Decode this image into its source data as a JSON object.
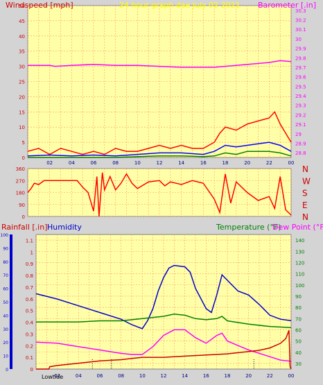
{
  "colors": {
    "plot_bg": "#ffffa8",
    "frame_bg": "#d4d4d4",
    "grid": "#ff9966",
    "wind_avg": "#0000ff",
    "wind_gust": "#ff0000",
    "wind_low": "#008000",
    "barometer": "#ff00ff",
    "direction": "#ff0000",
    "rain": "#cc0000",
    "humidity": "#0000cc",
    "temperature": "#008000",
    "dewpoint": "#ff00ff",
    "axis_label_magenta": "#ff00ff",
    "title_yellow": "#ffff00"
  },
  "chart_data": [
    {
      "type": "line",
      "title": "24 hour graph dae   July 02 2021",
      "left_axis_label": "Windspeed [mph]",
      "right_axis_label": "Barometer [.in]",
      "x_ticks": [
        "02",
        "04",
        "06",
        "08",
        "10",
        "12",
        "14",
        "16",
        "18",
        "20",
        "22",
        "00"
      ],
      "y_left_ticks": [
        0,
        5,
        10,
        15,
        20,
        25,
        30,
        35,
        40,
        45,
        50
      ],
      "y_left_range": [
        0,
        50
      ],
      "y_right_ticks": [
        "28.8",
        "28.9",
        "29",
        "29.1",
        "29.2",
        "29.3",
        "29.4",
        "29.5",
        "29.6",
        "29.7",
        "29.8",
        "29.9",
        "30",
        "30.1",
        "30.2",
        "30.3"
      ],
      "y_right_range": [
        28.75,
        30.35
      ],
      "x_range_hours": [
        0,
        24
      ],
      "series": [
        {
          "name": "",
          "axis": "right",
          "color": "barometer",
          "points": [
            [
              0,
              29.72
            ],
            [
              2,
              29.72
            ],
            [
              2.5,
              29.71
            ],
            [
              4,
              29.72
            ],
            [
              6,
              29.73
            ],
            [
              8,
              29.72
            ],
            [
              10,
              29.72
            ],
            [
              12,
              29.71
            ],
            [
              14,
              29.7
            ],
            [
              16,
              29.7
            ],
            [
              17,
              29.7
            ],
            [
              18,
              29.71
            ],
            [
              20,
              29.73
            ],
            [
              22,
              29.75
            ],
            [
              23,
              29.77
            ],
            [
              24,
              29.76
            ]
          ]
        },
        {
          "name": "",
          "axis": "left",
          "color": "wind_gust",
          "points": [
            [
              0,
              2
            ],
            [
              1,
              3
            ],
            [
              2,
              1
            ],
            [
              3,
              3
            ],
            [
              4,
              2
            ],
            [
              5,
              1
            ],
            [
              6,
              2
            ],
            [
              7,
              1
            ],
            [
              8,
              3
            ],
            [
              9,
              2
            ],
            [
              10,
              2
            ],
            [
              11,
              3
            ],
            [
              12,
              4
            ],
            [
              13,
              3
            ],
            [
              14,
              4
            ],
            [
              15,
              3
            ],
            [
              16,
              3
            ],
            [
              17,
              5
            ],
            [
              17.5,
              8
            ],
            [
              18,
              10
            ],
            [
              19,
              9
            ],
            [
              20,
              11
            ],
            [
              21,
              12
            ],
            [
              22,
              13
            ],
            [
              22.5,
              15
            ],
            [
              23,
              11
            ],
            [
              24,
              5
            ]
          ]
        },
        {
          "name": "",
          "axis": "left",
          "color": "wind_avg",
          "points": [
            [
              0,
              0.5
            ],
            [
              2,
              0.8
            ],
            [
              4,
              0.5
            ],
            [
              6,
              0.8
            ],
            [
              8,
              0.5
            ],
            [
              10,
              1
            ],
            [
              12,
              1.5
            ],
            [
              14,
              1.5
            ],
            [
              16,
              1
            ],
            [
              17,
              2
            ],
            [
              18,
              4
            ],
            [
              19,
              3.5
            ],
            [
              20,
              4
            ],
            [
              21,
              4.5
            ],
            [
              22,
              5
            ],
            [
              23,
              4
            ],
            [
              24,
              2
            ]
          ]
        },
        {
          "name": "",
          "axis": "left",
          "color": "wind_low",
          "points": [
            [
              0,
              0
            ],
            [
              8,
              0
            ],
            [
              10,
              0.3
            ],
            [
              12,
              0.5
            ],
            [
              14,
              0.5
            ],
            [
              16,
              0.3
            ],
            [
              17,
              0.5
            ],
            [
              18,
              1.5
            ],
            [
              19,
              1
            ],
            [
              20,
              2
            ],
            [
              21,
              2
            ],
            [
              22,
              2
            ],
            [
              23,
              1.5
            ],
            [
              24,
              0.5
            ]
          ]
        }
      ]
    },
    {
      "type": "line",
      "title": "",
      "y_left_ticks": [
        0,
        90,
        180,
        270,
        360
      ],
      "y_left_range": [
        0,
        360
      ],
      "y_right_labels": [
        "N",
        "W",
        "S",
        "E",
        "N"
      ],
      "x_range_hours": [
        0,
        24
      ],
      "series": [
        {
          "name": "",
          "axis": "left",
          "color": "direction",
          "points": [
            [
              0,
              180
            ],
            [
              0.3,
              210
            ],
            [
              0.6,
              250
            ],
            [
              1,
              240
            ],
            [
              1.5,
              270
            ],
            [
              3,
              270
            ],
            [
              4.5,
              270
            ],
            [
              5,
              220
            ],
            [
              5.5,
              180
            ],
            [
              6,
              40
            ],
            [
              6.3,
              300
            ],
            [
              6.5,
              0
            ],
            [
              6.8,
              330
            ],
            [
              7,
              200
            ],
            [
              7.5,
              300
            ],
            [
              8,
              200
            ],
            [
              8.5,
              250
            ],
            [
              9,
              320
            ],
            [
              9.5,
              250
            ],
            [
              10,
              210
            ],
            [
              11,
              260
            ],
            [
              12,
              270
            ],
            [
              12.5,
              230
            ],
            [
              13,
              260
            ],
            [
              14,
              240
            ],
            [
              15,
              270
            ],
            [
              16,
              250
            ],
            [
              17,
              130
            ],
            [
              17.5,
              30
            ],
            [
              18,
              320
            ],
            [
              18.5,
              100
            ],
            [
              19,
              260
            ],
            [
              20,
              180
            ],
            [
              21,
              120
            ],
            [
              22,
              150
            ],
            [
              22.5,
              60
            ],
            [
              23,
              300
            ],
            [
              23.5,
              50
            ],
            [
              24,
              10
            ]
          ]
        }
      ]
    },
    {
      "type": "line",
      "title": "",
      "label_rainfall": "Rainfall [.in]",
      "label_humidity": "Humidity",
      "label_temperature": "Temperature (°F)",
      "label_dewpoint": "Dew Point (°F)",
      "label_lowtide": "Lowtide",
      "y_humidity_ticks": [
        0,
        10,
        20,
        30,
        40,
        50,
        60,
        70,
        80,
        90,
        100
      ],
      "y_rain_ticks": [
        "0",
        "0.1",
        "0.2",
        "0.3",
        "0.4",
        "0.5",
        "0.6",
        "0.7",
        "0.8",
        "0.9",
        "1",
        "1.1"
      ],
      "y_rain_range": [
        0,
        1.15
      ],
      "y_temp_ticks": [
        30,
        40,
        50,
        60,
        70,
        80,
        90,
        100,
        110,
        120,
        130,
        140
      ],
      "y_temp_range": [
        25,
        145
      ],
      "x_ticks": [
        "02",
        "04",
        "06",
        "08",
        "10",
        "12",
        "14",
        "16",
        "18",
        "20",
        "22",
        "00"
      ],
      "x_range_hours": [
        0,
        24
      ],
      "tide_marks_hours": [
        5.3,
        7.1,
        20.5
      ],
      "series": [
        {
          "name": "Humidity",
          "axis": "humidity",
          "color": "humidity",
          "points": [
            [
              0,
              56
            ],
            [
              2,
              52
            ],
            [
              4,
              47
            ],
            [
              6,
              42
            ],
            [
              8,
              37
            ],
            [
              9,
              33
            ],
            [
              10,
              30
            ],
            [
              10.5,
              36
            ],
            [
              11,
              45
            ],
            [
              11.5,
              58
            ],
            [
              12,
              68
            ],
            [
              12.5,
              75
            ],
            [
              13,
              77
            ],
            [
              14,
              76
            ],
            [
              14.5,
              72
            ],
            [
              15,
              60
            ],
            [
              16,
              45
            ],
            [
              16.5,
              42
            ],
            [
              17,
              55
            ],
            [
              17.5,
              70
            ],
            [
              18,
              66
            ],
            [
              19,
              58
            ],
            [
              20,
              55
            ],
            [
              21,
              48
            ],
            [
              22,
              40
            ],
            [
              23,
              37
            ],
            [
              24,
              36
            ]
          ]
        },
        {
          "name": "Temperature",
          "axis": "temp",
          "color": "temperature",
          "points": [
            [
              0,
              67
            ],
            [
              2,
              67
            ],
            [
              4,
              67
            ],
            [
              6,
              68
            ],
            [
              8,
              68
            ],
            [
              10,
              70
            ],
            [
              12,
              72
            ],
            [
              13,
              74
            ],
            [
              14,
              73
            ],
            [
              15,
              70
            ],
            [
              16,
              69
            ],
            [
              17,
              70
            ],
            [
              17.5,
              72
            ],
            [
              18,
              68
            ],
            [
              20,
              65
            ],
            [
              22,
              63
            ],
            [
              24,
              62
            ]
          ]
        },
        {
          "name": "Dew Point",
          "axis": "temp",
          "color": "dewpoint",
          "points": [
            [
              0,
              49
            ],
            [
              2,
              48
            ],
            [
              4,
              45
            ],
            [
              6,
              42
            ],
            [
              8,
              39
            ],
            [
              9,
              38
            ],
            [
              10,
              38
            ],
            [
              11,
              45
            ],
            [
              12,
              55
            ],
            [
              13,
              60
            ],
            [
              14,
              60
            ],
            [
              15,
              53
            ],
            [
              16,
              48
            ],
            [
              17,
              55
            ],
            [
              17.5,
              57
            ],
            [
              18,
              50
            ],
            [
              19,
              46
            ],
            [
              20,
              42
            ],
            [
              22,
              36
            ],
            [
              23,
              33
            ],
            [
              24,
              32
            ]
          ]
        },
        {
          "name": "Rainfall",
          "axis": "rain",
          "color": "rain",
          "points": [
            [
              0,
              0
            ],
            [
              1.2,
              0
            ],
            [
              1.3,
              0.02
            ],
            [
              2,
              0.03
            ],
            [
              4,
              0.05
            ],
            [
              6,
              0.07
            ],
            [
              8,
              0.08
            ],
            [
              9,
              0.09
            ],
            [
              10,
              0.1
            ],
            [
              12,
              0.1
            ],
            [
              14,
              0.11
            ],
            [
              16,
              0.12
            ],
            [
              18,
              0.13
            ],
            [
              20,
              0.15
            ],
            [
              21,
              0.16
            ],
            [
              22,
              0.18
            ],
            [
              23,
              0.22
            ],
            [
              23.5,
              0.26
            ],
            [
              23.8,
              0.33
            ],
            [
              23.9,
              0.02
            ],
            [
              24,
              0
            ]
          ]
        }
      ]
    }
  ]
}
